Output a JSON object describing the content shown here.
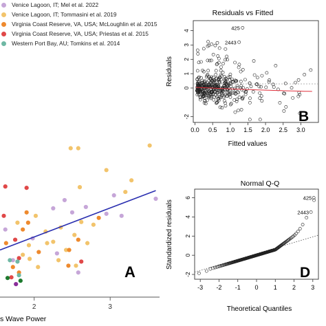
{
  "legend": [
    {
      "label": "Venice Lagoon, IT; Mel et al. 2022",
      "color": "#c6a6d8"
    },
    {
      "label": "Venice Lagoon, IT; Tommasini et al. 2019",
      "color": "#f2c46c"
    },
    {
      "label": "Virginia Coast Reserve, VA, USA; McLoughlin et al. 2015",
      "color": "#ee8a2e"
    },
    {
      "label": "Virginia Coast Reserve, VA, USA; Priestas et al. 2015",
      "color": "#e04848"
    },
    {
      "label": "Western Port Bay, AU; Tomkins et al. 2014",
      "color": "#6fb8a4"
    }
  ],
  "chart_data": [
    {
      "panel": "A",
      "type": "scatter",
      "xlabel": "s Wave Power",
      "ylabel": "",
      "x_ticks": [
        2,
        3
      ],
      "xlim": [
        1.55,
        3.65
      ],
      "ylim": [
        -0.2,
        2.6
      ],
      "fit_line": {
        "x": [
          1.55,
          3.6
        ],
        "y": [
          0.45,
          1.32
        ],
        "color": "#2a2fb0"
      },
      "series": [
        {
          "color": "#c6a6d8",
          "points": [
            [
              3.6,
              1.2
            ],
            [
              3.05,
              1.25
            ],
            [
              2.25,
              1.06
            ],
            [
              2.5,
              1.0
            ],
            [
              1.62,
              0.75
            ],
            [
              2.3,
              0.4
            ],
            [
              1.98,
              0.62
            ],
            [
              2.95,
              0.98
            ],
            [
              2.68,
              1.08
            ],
            [
              2.4,
              1.18
            ],
            [
              1.72,
              0.3
            ],
            [
              3.15,
              0.95
            ],
            [
              2.58,
              0.12
            ]
          ]
        },
        {
          "color": "#f2c46c",
          "points": [
            [
              2.48,
              1.94
            ],
            [
              2.58,
              1.94
            ],
            [
              3.52,
              1.98
            ],
            [
              2.95,
              1.62
            ],
            [
              3.28,
              1.47
            ],
            [
              2.6,
              1.37
            ],
            [
              1.78,
              0.85
            ],
            [
              2.62,
              0.86
            ],
            [
              2.35,
              0.78
            ],
            [
              2.53,
              0.67
            ],
            [
              2.78,
              0.82
            ],
            [
              2.25,
              0.57
            ],
            [
              2.42,
              0.45
            ],
            [
              2.32,
              0.3
            ],
            [
              2.17,
              0.55
            ],
            [
              1.93,
              0.52
            ],
            [
              2.15,
              0.72
            ],
            [
              2.02,
              0.95
            ],
            [
              1.85,
              0.38
            ],
            [
              1.94,
              0.32
            ],
            [
              2.7,
              0.55
            ],
            [
              3.2,
              1.3
            ],
            [
              2.55,
              0.22
            ],
            [
              2.05,
              0.2
            ]
          ]
        },
        {
          "color": "#ee8a2e",
          "points": [
            [
              1.85,
              0.75
            ],
            [
              1.72,
              0.2
            ],
            [
              2.46,
              0.45
            ],
            [
              1.9,
              1.0
            ],
            [
              1.8,
              0.12
            ],
            [
              1.63,
              0.55
            ],
            [
              2.58,
              0.6
            ],
            [
              2.85,
              0.92
            ],
            [
              1.92,
              0.85
            ],
            [
              2.45,
              0.22
            ],
            [
              2.06,
              0.42
            ]
          ]
        },
        {
          "color": "#e04848",
          "points": [
            [
              1.9,
              1.36
            ],
            [
              1.62,
              1.38
            ],
            [
              1.7,
              0.05
            ],
            [
              1.8,
              0.33
            ],
            [
              1.6,
              0.95
            ],
            [
              1.75,
              0.6
            ],
            [
              2.62,
              0.28
            ]
          ]
        },
        {
          "color": "#6fb8a4",
          "points": [
            [
              1.78,
              0.28
            ],
            [
              1.68,
              0.3
            ],
            [
              1.8,
              0.08
            ]
          ]
        },
        {
          "color": "#1d7a2e",
          "points": [
            [
              1.65,
              0.04
            ],
            [
              1.82,
              0.0
            ]
          ]
        },
        {
          "color": "#8a2e9a",
          "points": [
            [
              1.76,
              -0.05
            ]
          ]
        }
      ],
      "letter": "A"
    },
    {
      "panel": "B",
      "type": "scatter",
      "title": "Residuals vs Fitted",
      "xlabel": "Fitted values",
      "ylabel": "Residuals",
      "x_ticks": [
        "0.0",
        "0.5",
        "1.0",
        "1.5",
        "2.0",
        "2.5",
        "3.0"
      ],
      "y_ticks": [
        "-2",
        "0",
        "1",
        "2",
        "3",
        "4"
      ],
      "xlim": [
        -0.05,
        3.5
      ],
      "ylim": [
        -2.4,
        4.7
      ],
      "outliers": [
        {
          "label": "425",
          "x": 1.35,
          "y": 4.2
        },
        {
          "label": "2443",
          "x": 1.25,
          "y": 3.2
        }
      ],
      "letter": "B"
    },
    {
      "panel": "D",
      "type": "scatter",
      "title": "Normal Q-Q",
      "xlabel": "Theoretical Quantiles",
      "ylabel": "Standardized residuals",
      "x_ticks": [
        "-3",
        "-2",
        "-1",
        "0",
        "1",
        "2",
        "3"
      ],
      "y_ticks": [
        "-2",
        "0",
        "2",
        "4",
        "6"
      ],
      "xlim": [
        -3.3,
        3.3
      ],
      "ylim": [
        -2.5,
        6.9
      ],
      "outliers": [
        {
          "label": "425",
          "x": 3.05,
          "y": 6.0
        },
        {
          "label": "2443",
          "x": 2.9,
          "y": 4.5
        }
      ],
      "letter": "D"
    }
  ]
}
